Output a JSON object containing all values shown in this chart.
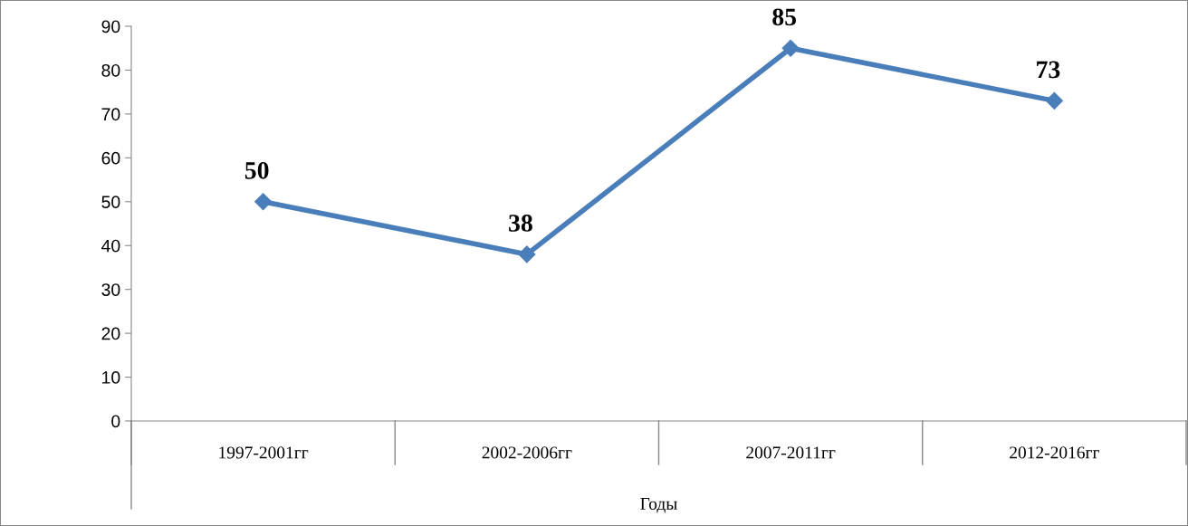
{
  "chart_data": {
    "type": "line",
    "xlabel": "Годы",
    "categories": [
      "1997-2001гг",
      "2002-2006гг",
      "2007-2011гг",
      "2012-2016гг"
    ],
    "series": [
      {
        "color": "#4a7ebb",
        "values": [
          50,
          38,
          85,
          73
        ]
      }
    ],
    "ylim": [
      0,
      90
    ],
    "yticks": [
      0,
      10,
      20,
      30,
      40,
      50,
      60,
      70,
      80,
      90
    ],
    "grid": false,
    "legend": false,
    "marker": "diamond",
    "line_style": "solid",
    "data_labels": true
  }
}
